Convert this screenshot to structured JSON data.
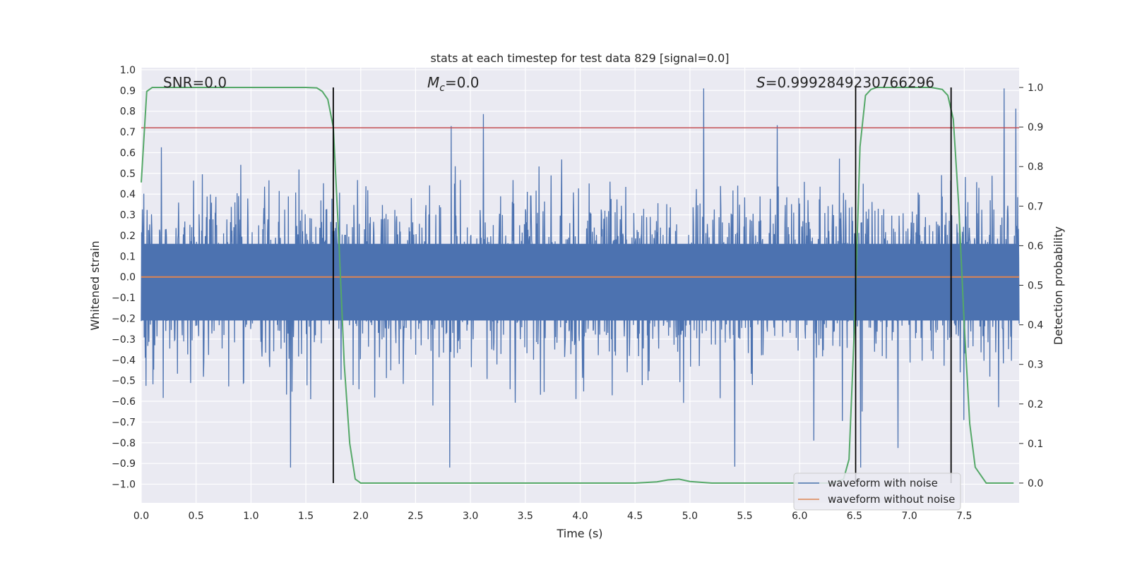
{
  "chart_data": {
    "type": "line",
    "title": "stats at each timestep for test data 829 [signal=0.0]",
    "xlabel": "Time (s)",
    "ylabel": "Whitened strain",
    "y2label": "Detection probability",
    "xlim": [
      0.0,
      8.0
    ],
    "ylim": [
      -1.09,
      1.01
    ],
    "y2lim": [
      -0.05,
      1.05
    ],
    "xticks": [
      "0.0",
      "0.5",
      "1.0",
      "1.5",
      "2.0",
      "2.5",
      "3.0",
      "3.5",
      "4.0",
      "4.5",
      "5.0",
      "5.5",
      "6.0",
      "6.5",
      "7.0",
      "7.5"
    ],
    "yticks": [
      "1.0",
      "0.9",
      "0.8",
      "0.7",
      "0.6",
      "0.5",
      "0.4",
      "0.3",
      "0.2",
      "0.1",
      "0.0",
      "−0.1",
      "−0.2",
      "−0.3",
      "−0.4",
      "−0.5",
      "−0.6",
      "−0.7",
      "−0.8",
      "−0.9",
      "−1.0"
    ],
    "y2ticks": [
      "1.0",
      "0.9",
      "0.8",
      "0.7",
      "0.6",
      "0.5",
      "0.4",
      "0.3",
      "0.2",
      "0.1",
      "0.0"
    ],
    "grid": true,
    "legend_position": "lower-right",
    "annotations": {
      "snr": "SNR=0.0",
      "mc_symbol": "M",
      "mc_sub": "c",
      "mc_value": "=0.0",
      "s_symbol": "S",
      "s_value": "=0.9992849230766296"
    },
    "series": [
      {
        "name": "waveform with noise",
        "color": "#4c72b0",
        "axis": "left",
        "description": "whitened strain noise trace, amplitude mostly within ±0.5 with spikes to about ±0.9"
      },
      {
        "name": "waveform without noise",
        "color": "#dd8452",
        "axis": "left",
        "values": {
          "x": [
            0.0,
            8.0
          ],
          "y": [
            0.0,
            0.0
          ]
        }
      },
      {
        "name": "",
        "color": "#55a868",
        "axis": "right",
        "x": [
          0.0,
          0.05,
          0.1,
          0.15,
          0.3,
          0.6,
          0.9,
          1.2,
          1.5,
          1.6,
          1.65,
          1.7,
          1.75,
          1.8,
          1.85,
          1.9,
          1.95,
          2.0,
          2.5,
          3.0,
          3.5,
          4.0,
          4.5,
          4.7,
          4.8,
          4.9,
          5.0,
          5.2,
          6.0,
          6.3,
          6.4,
          6.45,
          6.5,
          6.55,
          6.6,
          6.65,
          6.7,
          6.8,
          7.0,
          7.2,
          7.3,
          7.35,
          7.4,
          7.45,
          7.5,
          7.55,
          7.6,
          7.7,
          7.95
        ],
        "y": [
          0.76,
          0.99,
          1.0,
          1.0,
          1.0,
          1.0,
          1.0,
          1.0,
          1.0,
          0.999,
          0.99,
          0.97,
          0.9,
          0.62,
          0.3,
          0.1,
          0.01,
          0.0,
          0.0,
          0.0,
          0.0,
          0.0,
          0.0,
          0.003,
          0.008,
          0.01,
          0.004,
          0.0,
          0.0,
          0.0,
          0.01,
          0.06,
          0.4,
          0.85,
          0.98,
          0.995,
          1.0,
          1.0,
          1.0,
          1.0,
          0.995,
          0.98,
          0.92,
          0.7,
          0.4,
          0.15,
          0.04,
          0.0,
          0.0
        ]
      }
    ],
    "threshold_line": {
      "color": "#c44e52",
      "y": 0.72
    },
    "vertical_lines": {
      "color": "#000000",
      "x": [
        1.75,
        6.51,
        7.38
      ]
    }
  }
}
